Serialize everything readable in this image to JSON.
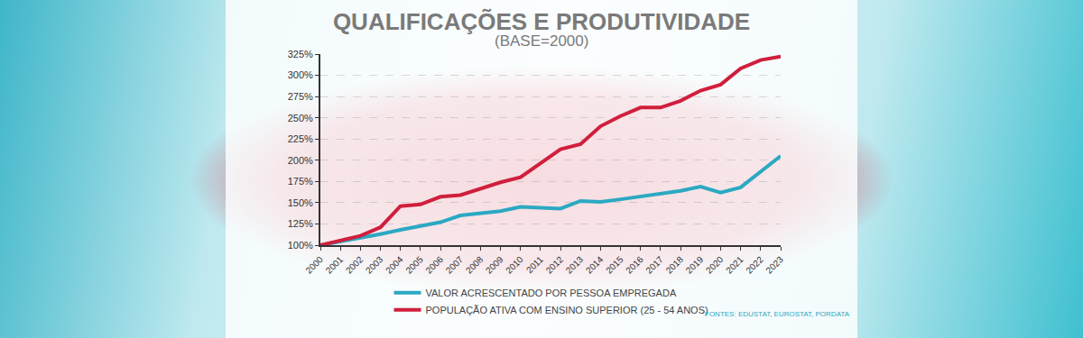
{
  "chart_data": {
    "type": "line",
    "title": "QUALIFICAÇÕES E PRODUTIVIDADE",
    "subtitle": "(BASE=2000)",
    "source": "FONTES: EDUSTAT, EUROSTAT, PORDATA",
    "x": [
      2000,
      2001,
      2002,
      2003,
      2004,
      2005,
      2006,
      2007,
      2008,
      2009,
      2010,
      2011,
      2012,
      2013,
      2014,
      2015,
      2016,
      2017,
      2018,
      2019,
      2020,
      2021,
      2022,
      2023
    ],
    "series": [
      {
        "name": "VALOR ACRESCENTADO POR PESSOA EMPREGADA",
        "color": "#2ba9c2",
        "values": [
          100,
          104,
          108,
          113,
          118,
          123,
          127,
          135,
          138,
          140,
          145,
          144,
          143,
          152,
          151,
          154,
          157,
          160,
          164,
          169,
          162,
          168,
          187,
          205
        ]
      },
      {
        "name": "POPULAÇÃO ATIVA COM ENSINO SUPERIOR (25 - 54 ANOS)",
        "color": "#d01f3c",
        "values": [
          100,
          106,
          111,
          121,
          146,
          148,
          157,
          159,
          167,
          174,
          180,
          196,
          213,
          219,
          240,
          252,
          262,
          262,
          270,
          282,
          289,
          308,
          318,
          322
        ]
      }
    ],
    "xlim": [
      2000,
      2023
    ],
    "xticks": [
      2000,
      2001,
      2002,
      2003,
      2004,
      2005,
      2006,
      2007,
      2008,
      2009,
      2010,
      2011,
      2012,
      2013,
      2014,
      2015,
      2016,
      2017,
      2018,
      2019,
      2020,
      2021,
      2022,
      2023
    ],
    "ylim": [
      100,
      325
    ],
    "yticks": [
      {
        "value": 100,
        "label": "100%"
      },
      {
        "value": 125,
        "label": "125%"
      },
      {
        "value": 150,
        "label": "150%"
      },
      {
        "value": 175,
        "label": "175%"
      },
      {
        "value": 200,
        "label": "200%"
      },
      {
        "value": 225,
        "label": "225%"
      },
      {
        "value": 250,
        "label": "250%"
      },
      {
        "value": 275,
        "label": "275%"
      },
      {
        "value": 300,
        "label": "300%"
      },
      {
        "value": 325,
        "label": "325%"
      }
    ],
    "grid": true,
    "legend": "bottom"
  }
}
